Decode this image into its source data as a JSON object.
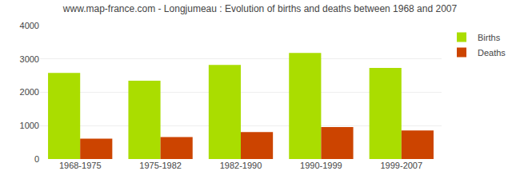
{
  "chart_data": {
    "type": "bar",
    "title": "www.map-france.com - Longjumeau : Evolution of births and deaths between 1968 and 2007",
    "categories": [
      "1968-1975",
      "1975-1982",
      "1982-1990",
      "1990-1999",
      "1999-2007"
    ],
    "series": [
      {
        "name": "Births",
        "color": "#aadd00",
        "values": [
          2580,
          2350,
          2820,
          3180,
          2730
        ]
      },
      {
        "name": "Deaths",
        "color": "#cc4400",
        "values": [
          610,
          660,
          810,
          960,
          855
        ]
      }
    ],
    "ylim": [
      0,
      4000
    ],
    "yticks": [
      0,
      1000,
      2000,
      3000,
      4000
    ],
    "grid": true,
    "legend": "upper right"
  }
}
